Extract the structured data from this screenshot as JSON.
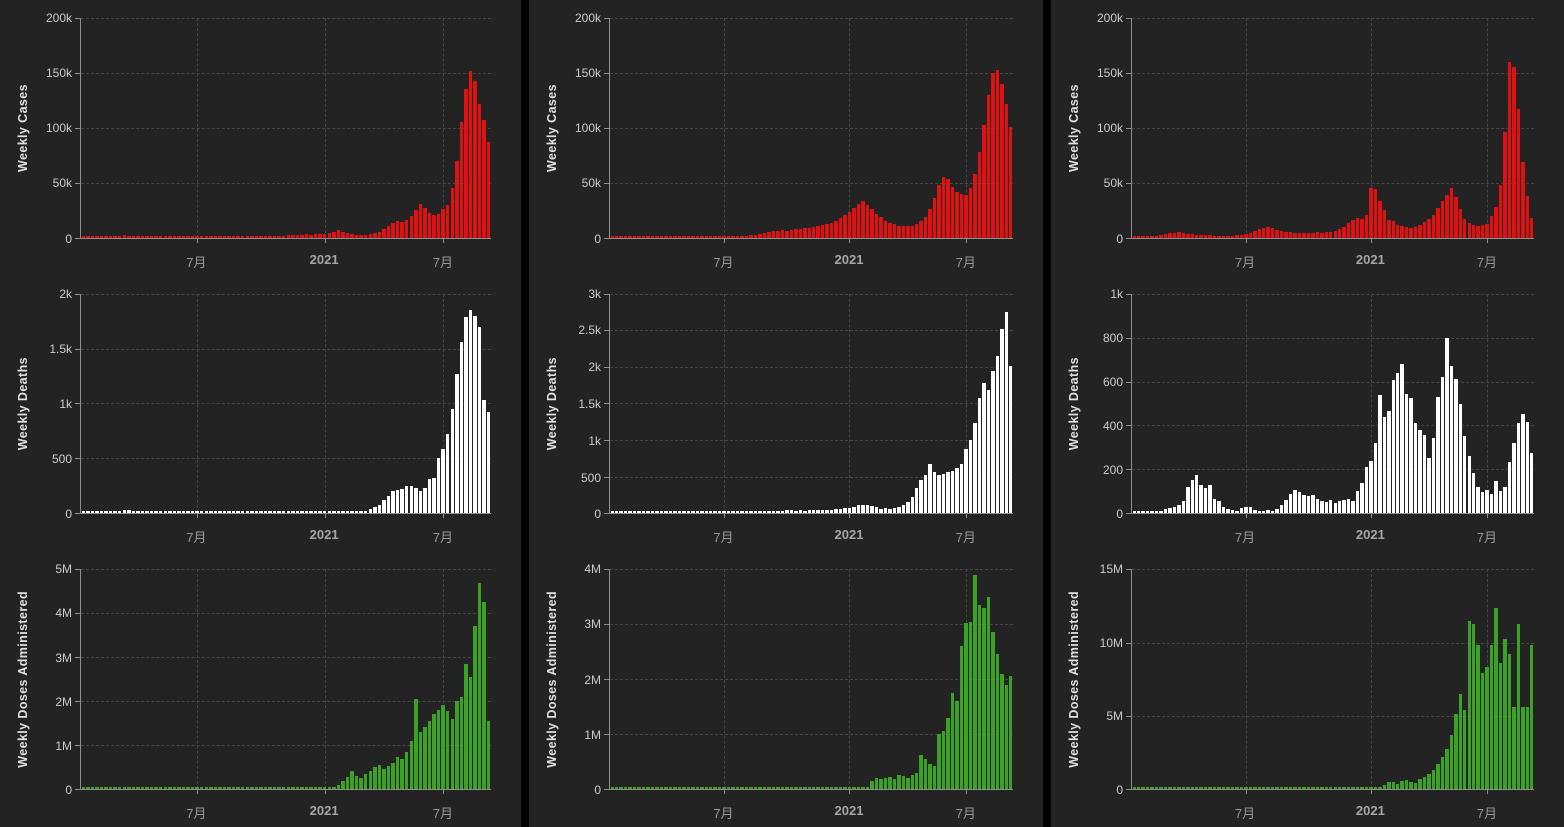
{
  "page": {
    "background": "#000000",
    "panel_background": "#232323"
  },
  "colors": {
    "cases": "#e01111",
    "deaths": "#ffffff",
    "doses": "#3ba226",
    "grid": "#464646",
    "axis": "#8f8f8f",
    "y_tick_label": "#cccccc",
    "x_tick_label": "#999999",
    "axis_title": "#e0e0e0"
  },
  "x_axis": {
    "labels": [
      {
        "text": "7月",
        "bold": false
      },
      {
        "text": "2021",
        "bold": true
      },
      {
        "text": "7月",
        "bold": false
      }
    ],
    "fractions": [
      0.283,
      0.594,
      0.883
    ]
  },
  "chart_data": [
    {
      "type": "bar",
      "column": 1,
      "row": 1,
      "ylabel": "Weekly Cases",
      "color_key": "cases",
      "unit": "thousands",
      "ymax": 200,
      "ylim": [
        0,
        200000
      ],
      "ytick_labels": [
        "0",
        "50k",
        "100k",
        "150k",
        "200k"
      ],
      "values": [
        0.15,
        0.15,
        0.2,
        0.2,
        0.25,
        0.3,
        0.5,
        0.9,
        1.8,
        2.1,
        1.4,
        1.9,
        0.6,
        0.5,
        0.4,
        0.4,
        0.35,
        0.3,
        0.3,
        0.3,
        0.35,
        0.4,
        0.4,
        0.45,
        0.5,
        0.5,
        0.55,
        0.6,
        0.6,
        0.65,
        0.7,
        0.7,
        0.75,
        0.8,
        0.8,
        0.85,
        0.9,
        0.95,
        1,
        1.05,
        1.1,
        1.2,
        1.3,
        1.5,
        1.7,
        2,
        2.4,
        2.2,
        2.6,
        3,
        2.8,
        3.2,
        3,
        3.4,
        4.2,
        5.5,
        6.8,
        5.2,
        3.8,
        3,
        2.5,
        2.3,
        2.5,
        3,
        4,
        5.5,
        8,
        11,
        13.5,
        15.5,
        14.5,
        16.5,
        19.5,
        25,
        30.5,
        27,
        22.5,
        20.5,
        22,
        26,
        30,
        45,
        70,
        105,
        135,
        152,
        143,
        122,
        107,
        87
      ]
    },
    {
      "type": "bar",
      "column": 1,
      "row": 2,
      "ylabel": "Weekly Deaths",
      "color_key": "deaths",
      "unit": "ones",
      "ymax": 2000,
      "ylim": [
        0,
        2000
      ],
      "ytick_labels": [
        "0",
        "500",
        "1k",
        "1.5k",
        "2k"
      ],
      "values": [
        2,
        2,
        3,
        3,
        4,
        5,
        8,
        12,
        22,
        28,
        30,
        24,
        18,
        6,
        5,
        4,
        4,
        3,
        3,
        3,
        3,
        3,
        4,
        4,
        4,
        4,
        4,
        4,
        5,
        5,
        5,
        5,
        5,
        6,
        6,
        6,
        6,
        7,
        7,
        7,
        8,
        8,
        8,
        9,
        9,
        10,
        10,
        11,
        12,
        15,
        12,
        11,
        12,
        13,
        14,
        15,
        14,
        13,
        12,
        12,
        13,
        15,
        20,
        35,
        55,
        80,
        120,
        160,
        200,
        215,
        225,
        250,
        245,
        230,
        200,
        235,
        310,
        320,
        500,
        590,
        720,
        950,
        1270,
        1560,
        1790,
        1850,
        1800,
        1700,
        1030,
        920
      ]
    },
    {
      "type": "bar",
      "column": 1,
      "row": 3,
      "ylabel": "Weekly Doses Administered",
      "color_key": "doses",
      "unit": "millions",
      "ymax": 5,
      "ylim": [
        0,
        5000000
      ],
      "ytick_labels": [
        "0",
        "1M",
        "2M",
        "3M",
        "4M",
        "5M"
      ],
      "values": [
        0.008,
        0.008,
        0.008,
        0.008,
        0.008,
        0.008,
        0.008,
        0.008,
        0.008,
        0.008,
        0.008,
        0.008,
        0.008,
        0.008,
        0.008,
        0.008,
        0.008,
        0.008,
        0.008,
        0.008,
        0.008,
        0.008,
        0.008,
        0.008,
        0.008,
        0.008,
        0.008,
        0.008,
        0.008,
        0.008,
        0.008,
        0.008,
        0.008,
        0.008,
        0.008,
        0.008,
        0.008,
        0.008,
        0.008,
        0.008,
        0.008,
        0.008,
        0.008,
        0.008,
        0.008,
        0.008,
        0.008,
        0.008,
        0.008,
        0.008,
        0.008,
        0.008,
        0.008,
        0.008,
        0.008,
        0.05,
        0.1,
        0.18,
        0.28,
        0.42,
        0.3,
        0.26,
        0.35,
        0.42,
        0.5,
        0.55,
        0.45,
        0.52,
        0.6,
        0.72,
        0.68,
        0.85,
        1.1,
        2.05,
        1.3,
        1.4,
        1.55,
        1.7,
        1.8,
        1.92,
        1.78,
        1.6,
        2,
        2.1,
        2.85,
        2.55,
        3.7,
        4.7,
        4.25,
        1.55
      ]
    },
    {
      "type": "bar",
      "column": 2,
      "row": 1,
      "ylabel": "Weekly Cases",
      "color_key": "cases",
      "unit": "thousands",
      "ymax": 200,
      "ylim": [
        0,
        200000
      ],
      "ytick_labels": [
        "0",
        "50k",
        "100k",
        "150k",
        "200k"
      ],
      "values": [
        0.2,
        0.3,
        0.3,
        0.4,
        0.5,
        0.8,
        1.5,
        1.8,
        1.5,
        1.8,
        1.6,
        1.8,
        1.2,
        0.9,
        1.1,
        1.5,
        1.8,
        0.7,
        0.6,
        0.6,
        0.7,
        0.7,
        0.8,
        0.8,
        0.9,
        1,
        1,
        1.1,
        1.2,
        1.4,
        1.7,
        2.2,
        2.8,
        3.6,
        4.4,
        5.2,
        5.8,
        6.2,
        6.8,
        6.4,
        7.2,
        7.8,
        8.2,
        8.8,
        9.2,
        9.8,
        10.5,
        11.2,
        12,
        13.5,
        15.5,
        18,
        21,
        23,
        27,
        31,
        33,
        30,
        26,
        22,
        18.5,
        15.5,
        13.5,
        12,
        11,
        10.5,
        10.2,
        10.8,
        12.5,
        15,
        19,
        26,
        36,
        48,
        55,
        53,
        46,
        42,
        40,
        38.5,
        45,
        58,
        78,
        103,
        130,
        150,
        153,
        140,
        122,
        101
      ]
    },
    {
      "type": "bar",
      "column": 2,
      "row": 2,
      "ylabel": "Weekly Deaths",
      "color_key": "deaths",
      "unit": "ones",
      "ymax": 3000,
      "ylim": [
        0,
        3000
      ],
      "ytick_labels": [
        "0",
        "500",
        "1k",
        "1.5k",
        "2k",
        "2.5k",
        "3k"
      ],
      "values": [
        1,
        1,
        2,
        2,
        3,
        4,
        8,
        25,
        35,
        38,
        32,
        28,
        34,
        30,
        32,
        25,
        6,
        5,
        4,
        4,
        4,
        4,
        5,
        5,
        5,
        5,
        5,
        6,
        6,
        7,
        8,
        10,
        12,
        15,
        18,
        22,
        26,
        30,
        38,
        45,
        40,
        36,
        42,
        38,
        40,
        40,
        45,
        42,
        50,
        48,
        55,
        60,
        68,
        75,
        90,
        110,
        120,
        115,
        100,
        80,
        60,
        70,
        65,
        75,
        90,
        110,
        150,
        230,
        350,
        450,
        530,
        670,
        560,
        520,
        535,
        560,
        580,
        620,
        680,
        880,
        1000,
        1230,
        1580,
        1780,
        1680,
        1950,
        2150,
        2520,
        2750,
        2010
      ]
    },
    {
      "type": "bar",
      "column": 2,
      "row": 3,
      "ylabel": "Weekly Doses Administered",
      "color_key": "doses",
      "unit": "millions",
      "ymax": 4,
      "ylim": [
        0,
        4000000
      ],
      "ytick_labels": [
        "0",
        "1M",
        "2M",
        "3M",
        "4M"
      ],
      "values": [
        0.008,
        0.008,
        0.008,
        0.008,
        0.008,
        0.008,
        0.008,
        0.008,
        0.008,
        0.008,
        0.008,
        0.008,
        0.008,
        0.008,
        0.008,
        0.008,
        0.008,
        0.008,
        0.008,
        0.008,
        0.008,
        0.008,
        0.008,
        0.008,
        0.008,
        0.008,
        0.008,
        0.008,
        0.008,
        0.008,
        0.008,
        0.008,
        0.008,
        0.008,
        0.008,
        0.008,
        0.008,
        0.008,
        0.008,
        0.008,
        0.008,
        0.008,
        0.008,
        0.008,
        0.008,
        0.008,
        0.008,
        0.008,
        0.008,
        0.008,
        0.008,
        0.008,
        0.008,
        0.008,
        0.008,
        0.008,
        0.008,
        0.008,
        0.15,
        0.2,
        0.18,
        0.2,
        0.22,
        0.19,
        0.25,
        0.23,
        0.2,
        0.25,
        0.3,
        0.62,
        0.55,
        0.45,
        0.42,
        1,
        1.05,
        1.3,
        1.75,
        1.6,
        2.6,
        3.02,
        3.05,
        3.9,
        3.35,
        3.3,
        3.5,
        2.85,
        2.45,
        2.1,
        1.9,
        2.05
      ]
    },
    {
      "type": "bar",
      "column": 3,
      "row": 1,
      "ylabel": "Weekly Cases",
      "color_key": "cases",
      "unit": "thousands",
      "ymax": 200,
      "ylim": [
        0,
        200000
      ],
      "ytick_labels": [
        "0",
        "50k",
        "100k",
        "150k",
        "200k"
      ],
      "values": [
        0.3,
        0.4,
        0.5,
        0.6,
        0.8,
        1.2,
        2,
        3,
        3.8,
        4.5,
        5,
        4.2,
        3.5,
        3,
        2.5,
        2.2,
        2,
        2.2,
        1.5,
        1.2,
        1.3,
        1.5,
        1.8,
        2.2,
        2.8,
        3.5,
        4.5,
        6,
        7.5,
        9,
        10,
        8.5,
        7,
        6,
        5.5,
        5,
        4.5,
        4.2,
        4,
        4.5,
        4.2,
        4.8,
        4.5,
        5,
        5.5,
        6.5,
        8,
        10,
        13,
        16,
        17.5,
        17,
        21,
        45,
        44,
        33,
        25,
        16,
        15,
        11.5,
        10.5,
        9.5,
        9,
        10,
        11.5,
        14,
        17,
        21,
        27,
        33,
        39,
        45,
        37,
        26,
        17,
        13.5,
        11.5,
        11,
        11.5,
        12.5,
        20,
        28,
        48,
        96,
        160,
        155,
        117,
        69,
        38,
        18
      ]
    },
    {
      "type": "bar",
      "column": 3,
      "row": 2,
      "ylabel": "Weekly Deaths",
      "color_key": "deaths",
      "unit": "ones",
      "ymax": 1000,
      "ylim": [
        0,
        1000
      ],
      "ytick_labels": [
        "0",
        "200",
        "400",
        "600",
        "800",
        "1k"
      ],
      "values": [
        1,
        1,
        2,
        3,
        5,
        8,
        12,
        18,
        25,
        30,
        40,
        55,
        120,
        150,
        175,
        130,
        115,
        130,
        65,
        55,
        30,
        22,
        15,
        12,
        25,
        30,
        28,
        15,
        10,
        10,
        15,
        12,
        20,
        40,
        60,
        90,
        105,
        95,
        85,
        80,
        85,
        65,
        55,
        50,
        60,
        45,
        55,
        60,
        65,
        55,
        100,
        140,
        210,
        240,
        320,
        540,
        440,
        465,
        605,
        640,
        680,
        545,
        525,
        410,
        380,
        355,
        250,
        345,
        530,
        620,
        800,
        670,
        610,
        500,
        350,
        260,
        185,
        120,
        95,
        105,
        90,
        145,
        100,
        120,
        235,
        320,
        410,
        450,
        415,
        275
      ]
    },
    {
      "type": "bar",
      "column": 3,
      "row": 3,
      "ylabel": "Weekly Doses Administered",
      "color_key": "doses",
      "unit": "millions",
      "ymax": 15,
      "ylim": [
        0,
        15000000
      ],
      "ytick_labels": [
        "0",
        "5M",
        "10M",
        "15M"
      ],
      "values": [
        0.02,
        0.02,
        0.02,
        0.02,
        0.02,
        0.02,
        0.02,
        0.02,
        0.02,
        0.02,
        0.02,
        0.02,
        0.02,
        0.02,
        0.02,
        0.02,
        0.02,
        0.02,
        0.02,
        0.02,
        0.02,
        0.02,
        0.02,
        0.02,
        0.02,
        0.02,
        0.02,
        0.02,
        0.02,
        0.02,
        0.02,
        0.02,
        0.02,
        0.02,
        0.02,
        0.02,
        0.02,
        0.02,
        0.02,
        0.02,
        0.02,
        0.02,
        0.02,
        0.02,
        0.02,
        0.02,
        0.02,
        0.02,
        0.02,
        0.02,
        0.02,
        0.02,
        0.02,
        0.02,
        0.02,
        0.02,
        0.3,
        0.5,
        0.45,
        0.35,
        0.55,
        0.6,
        0.5,
        0.4,
        0.7,
        0.85,
        1.05,
        1.3,
        1.7,
        2.2,
        2.75,
        3.7,
        5.15,
        6.5,
        5.4,
        11.45,
        11.25,
        9.85,
        7.9,
        8.3,
        9.85,
        12.35,
        8.6,
        10.25,
        9.2,
        5.6,
        11.3,
        5.6,
        5.6,
        9.8
      ]
    }
  ]
}
